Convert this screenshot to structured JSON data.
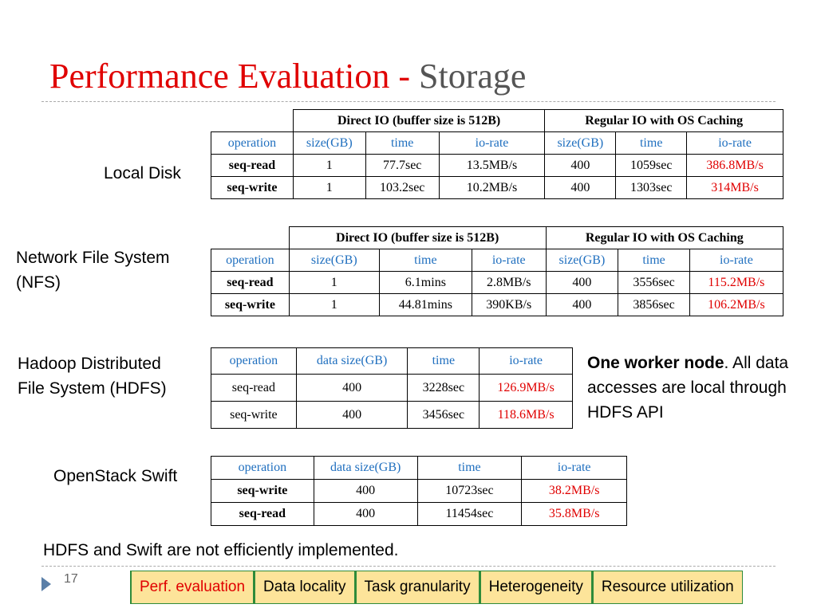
{
  "title": {
    "main": "Performance Evaluation",
    "sep": "-",
    "sub": "Storage"
  },
  "sections": {
    "local": {
      "label": "Local Disk",
      "groups": [
        "Direct IO (buffer size is 512B)",
        "Regular IO with OS Caching"
      ],
      "headers": [
        "operation",
        "size(GB)",
        "time",
        "io-rate",
        "size(GB)",
        "time",
        "io-rate"
      ],
      "rows": [
        [
          "seq-read",
          "1",
          "77.7sec",
          "13.5MB/s",
          "400",
          "1059sec",
          "386.8MB/s"
        ],
        [
          "seq-write",
          "1",
          "103.2sec",
          "10.2MB/s",
          "400",
          "1303sec",
          "314MB/s"
        ]
      ]
    },
    "nfs": {
      "label_line1": "Network File System",
      "label_line2": "(NFS)",
      "groups": [
        "Direct IO (buffer size is 512B)",
        "Regular IO with OS Caching"
      ],
      "headers": [
        "operation",
        "size(GB)",
        "time",
        "io-rate",
        "size(GB)",
        "time",
        "io-rate"
      ],
      "rows": [
        [
          "seq-read",
          "1",
          "6.1mins",
          "2.8MB/s",
          "400",
          "3556sec",
          "115.2MB/s"
        ],
        [
          "seq-write",
          "1",
          "44.81mins",
          "390KB/s",
          "400",
          "3856sec",
          "106.2MB/s"
        ]
      ]
    },
    "hdfs": {
      "label_line1": "Hadoop Distributed",
      "label_line2": "File System (HDFS)",
      "headers": [
        "operation",
        "data size(GB)",
        "time",
        "io-rate"
      ],
      "rows": [
        [
          "seq-read",
          "400",
          "3228sec",
          "126.9MB/s"
        ],
        [
          "seq-write",
          "400",
          "3456sec",
          "118.6MB/s"
        ]
      ],
      "note_bold": "One worker node",
      "note_rest": ".  All data accesses are local through HDFS API"
    },
    "swift": {
      "label": "OpenStack Swift",
      "headers": [
        "operation",
        "data size(GB)",
        "time",
        "io-rate"
      ],
      "rows": [
        [
          "seq-write",
          "400",
          "10723sec",
          "38.2MB/s"
        ],
        [
          "seq-read",
          "400",
          "11454sec",
          "35.8MB/s"
        ]
      ]
    }
  },
  "footer_note": "HDFS and Swift are not efficiently implemented.",
  "page_number": "17",
  "nav": [
    "Perf. evaluation",
    "Data locality",
    "Task granularity",
    "Heterogeneity",
    "Resource utilization"
  ],
  "colors": {
    "accent_red": "#e00000",
    "header_blue": "#1f6fbf",
    "nav_bg": "#fde49a",
    "nav_border": "#2e8b3a"
  }
}
